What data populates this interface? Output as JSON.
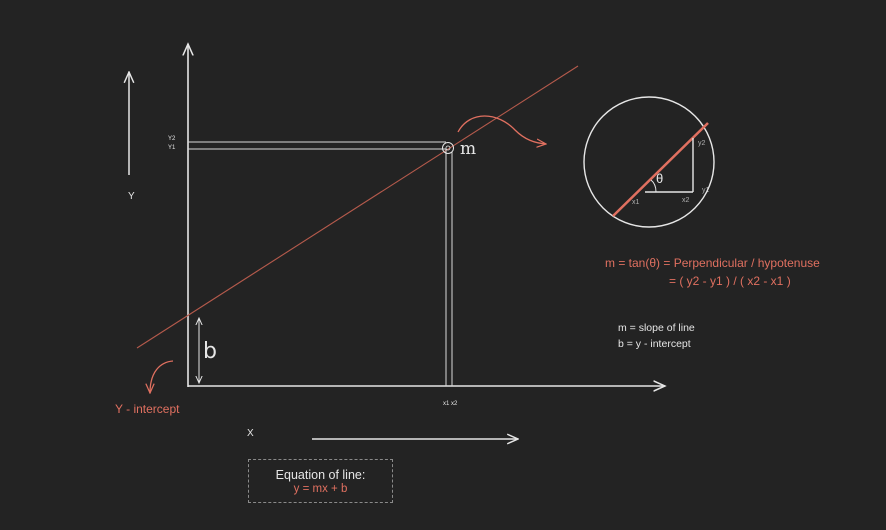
{
  "labels": {
    "y_axis": "Y",
    "x_axis": "X",
    "y2": "Y2",
    "y1": "Y1",
    "x1x2": "x1 x2",
    "m_point": "m",
    "b_mark": "b",
    "y_intercept": "Y - intercept",
    "theta": "θ",
    "x1_sub": "x1",
    "x2_sub": "x2",
    "y1_sub": "y1",
    "y2_sub": "y2"
  },
  "formula": {
    "line1": "m = tan(θ) = Perpendicular / hypotenuse",
    "line2": "= ( y2 - y1 ) / ( x2 - x1 )"
  },
  "legend": {
    "m_def": "m = slope of line",
    "b_def": "b = y - intercept"
  },
  "equation_box": {
    "title": "Equation of line:",
    "equation": "y = mx + b"
  },
  "colors": {
    "background": "#232323",
    "chalk": "#e6e6e6",
    "accent": "#e07060",
    "line": "#b55a4c"
  }
}
